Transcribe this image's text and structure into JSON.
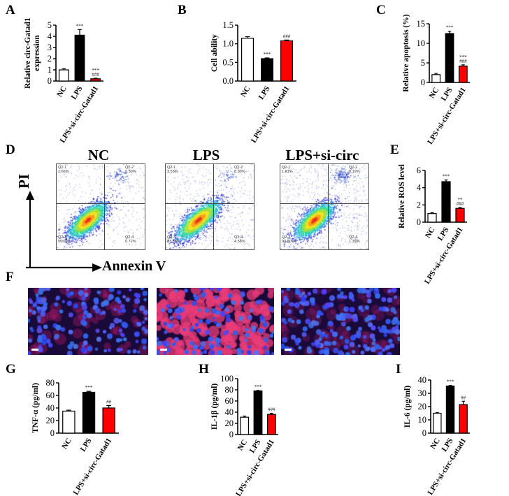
{
  "panel_letters": [
    "A",
    "B",
    "C",
    "D",
    "E",
    "F",
    "G",
    "H",
    "I"
  ],
  "chart_data": [
    {
      "id": "A",
      "type": "bar",
      "categories": [
        "NC",
        "LPS",
        "LPS+si-circ-Gatad1"
      ],
      "values": [
        1.0,
        4.1,
        0.2
      ],
      "errors": [
        0.1,
        0.5,
        0.05
      ],
      "colors": [
        "#ffffff",
        "#000000",
        "#ff0000"
      ],
      "ylabel": "Relative circ-Gatad1\nexpression",
      "yticks": [
        "0",
        "1",
        "2",
        "3",
        "4",
        "5"
      ],
      "ylim": [
        0,
        5
      ],
      "annotations": [
        [],
        [
          "***"
        ],
        [
          "###",
          "***"
        ]
      ]
    },
    {
      "id": "B",
      "type": "bar",
      "categories": [
        "NC",
        "LPS",
        "LPS+si-circ-Gatad1"
      ],
      "values": [
        1.15,
        0.6,
        1.08
      ],
      "errors": [
        0.04,
        0.02,
        0.02
      ],
      "colors": [
        "#ffffff",
        "#000000",
        "#ff0000"
      ],
      "ylabel": "Cell ability",
      "yticks": [
        "0.0",
        "0.5",
        "1.0",
        "1.5"
      ],
      "ylim": [
        0,
        1.5
      ],
      "annotations": [
        [],
        [
          "***"
        ],
        [
          "###"
        ]
      ]
    },
    {
      "id": "C",
      "type": "bar",
      "categories": [
        "NC",
        "LPS",
        "LPS+si-circ-Gatad1"
      ],
      "values": [
        2.0,
        12.5,
        4.2
      ],
      "errors": [
        0.3,
        0.6,
        0.3
      ],
      "colors": [
        "#ffffff",
        "#000000",
        "#ff0000"
      ],
      "ylabel": "Relative apoptosis (%)",
      "yticks": [
        "0",
        "5",
        "10",
        "15"
      ],
      "ylim": [
        0,
        15
      ],
      "annotations": [
        [],
        [
          "***"
        ],
        [
          "###",
          "***"
        ]
      ]
    },
    {
      "id": "E",
      "type": "bar",
      "categories": [
        "NC",
        "LPS",
        "LPS+si-circ-Gatad1"
      ],
      "values": [
        1.0,
        4.7,
        1.6
      ],
      "errors": [
        0.1,
        0.2,
        0.1
      ],
      "colors": [
        "#ffffff",
        "#000000",
        "#ff0000"
      ],
      "ylabel": "Relative ROS level",
      "yticks": [
        "0",
        "2",
        "4",
        "6"
      ],
      "ylim": [
        0,
        6
      ],
      "annotations": [
        [],
        [
          "***"
        ],
        [
          "###",
          "**"
        ]
      ]
    },
    {
      "id": "G",
      "type": "bar",
      "categories": [
        "NC",
        "LPS",
        "LPS+si-circ-Gatad1"
      ],
      "values": [
        35,
        65,
        40
      ],
      "errors": [
        1.5,
        1.5,
        4
      ],
      "colors": [
        "#ffffff",
        "#000000",
        "#ff0000"
      ],
      "ylabel": "TNF-α (pg/ml)",
      "yticks": [
        "0",
        "20",
        "40",
        "60",
        "80"
      ],
      "ylim": [
        0,
        80
      ],
      "annotations": [
        [],
        [
          "***"
        ],
        [
          "##"
        ]
      ]
    },
    {
      "id": "H",
      "type": "bar",
      "categories": [
        "NC",
        "LPS",
        "LPS+si-circ-Gatad1"
      ],
      "values": [
        31,
        78,
        36
      ],
      "errors": [
        2,
        1,
        2
      ],
      "colors": [
        "#ffffff",
        "#000000",
        "#ff0000"
      ],
      "ylabel": "IL-1β (pg/ml)",
      "yticks": [
        "0",
        "20",
        "40",
        "60",
        "80",
        "100"
      ],
      "ylim": [
        0,
        100
      ],
      "annotations": [
        [],
        [
          "***"
        ],
        [
          "###"
        ]
      ]
    },
    {
      "id": "I",
      "type": "bar",
      "categories": [
        "NC",
        "LPS",
        "LPS+si-circ-Gatad1"
      ],
      "values": [
        15,
        35.5,
        21.5
      ],
      "errors": [
        0.5,
        0.5,
        2.5
      ],
      "colors": [
        "#ffffff",
        "#000000",
        "#ff0000"
      ],
      "ylabel": "IL-6 (pg/ml)",
      "yticks": [
        "0",
        "10",
        "20",
        "30",
        "40"
      ],
      "ylim": [
        0,
        40
      ],
      "annotations": [
        [],
        [
          "***"
        ],
        [
          "##"
        ]
      ]
    }
  ],
  "flow": {
    "axis_y": "PI",
    "axis_x": "Annexin V",
    "plots": [
      {
        "title": "NC",
        "q1": "Q2-1\n1.66%",
        "q2": "Q2-2\n1.50%",
        "q3": "Q2-3\n95.92%",
        "q4": "Q2-4\n0.72%"
      },
      {
        "title": "LPS",
        "q1": "Q2-1\n3.53%",
        "q2": "Q2-2\n8.30%",
        "q3": "Q2-3\n83.58%",
        "q4": "Q2-4\n4.58%"
      },
      {
        "title": "LPS+si-circ",
        "q1": "Q2-1\n1.61%",
        "q2": "Q2-2\n3.19%",
        "q3": "Q2-3\n93.80%",
        "q4": "Q2-4\n1.39%"
      }
    ]
  },
  "colors": {
    "bar_nc": "#ffffff",
    "bar_lps": "#000000",
    "bar_si": "#ff0000",
    "micro_bg": "#1a0a3a"
  }
}
